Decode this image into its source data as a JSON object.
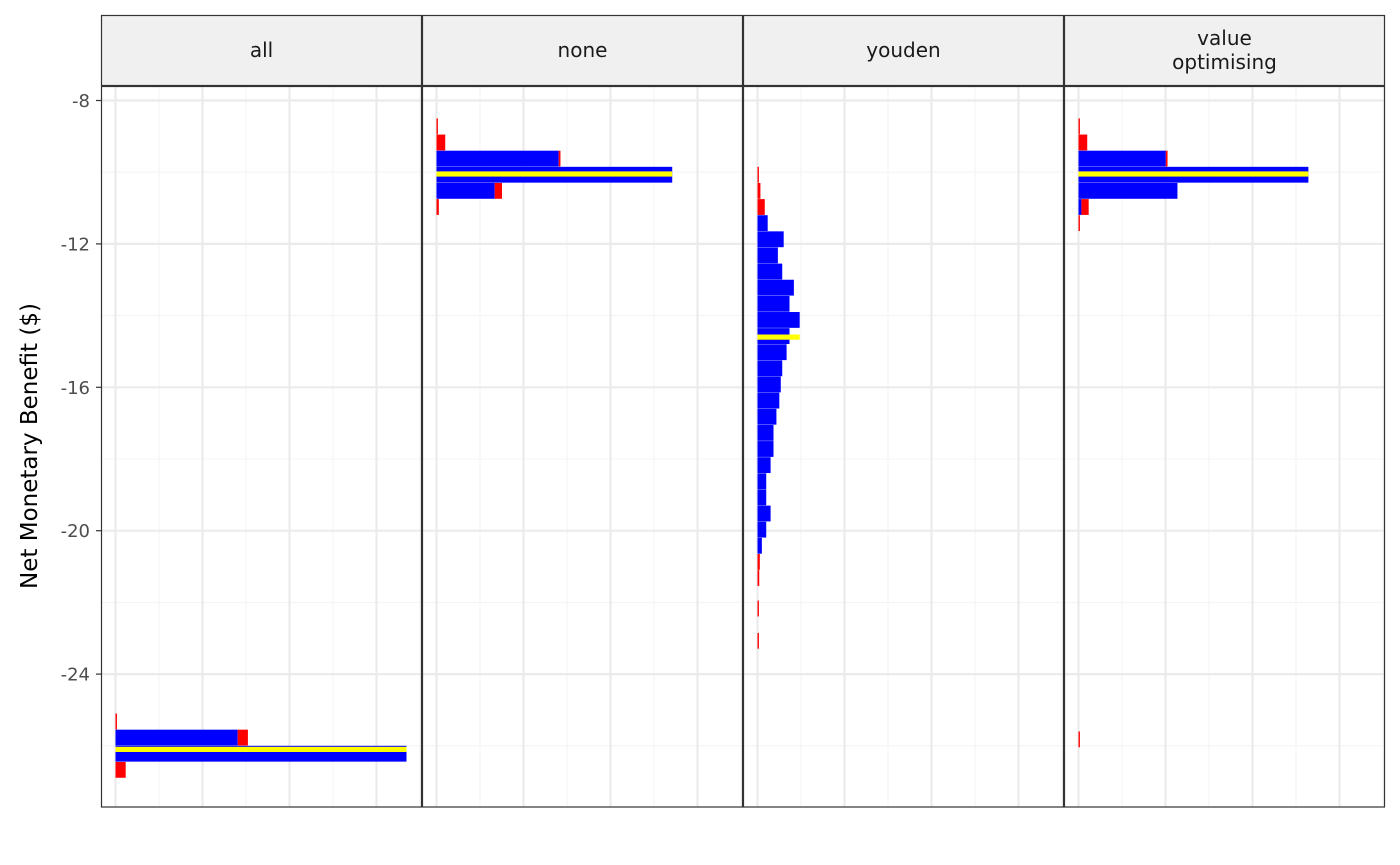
{
  "chart_data": {
    "type": "bar",
    "orientation": "horizontal",
    "ylabel": "Net Monetary Benefit ($)",
    "xlabel": "",
    "ylim": [
      -27.2,
      -7.6
    ],
    "yticks": [
      -8,
      -12,
      -16,
      -20,
      -24
    ],
    "ytick_labels": [
      "-8",
      "-12",
      "-16",
      "-20",
      "-24"
    ],
    "xlim": [
      0,
      1
    ],
    "grid": true,
    "bin_width": 0.45,
    "colors": {
      "hdi": "#0000ff",
      "tail": "#ff0000",
      "median": "#ffff00"
    },
    "panels": [
      {
        "label": "all",
        "median": -26.1,
        "bins": [
          {
            "y": -25.1,
            "length": 0.005,
            "fill": "tail"
          },
          {
            "y": -25.55,
            "length": 0.42,
            "fill": "hdi"
          },
          {
            "y": -25.55,
            "length": 0.035,
            "fill": "tail",
            "offset": 0.42
          },
          {
            "y": -26.0,
            "length": 1.0,
            "fill": "hdi"
          },
          {
            "y": -26.45,
            "length": 0.035,
            "fill": "tail"
          }
        ]
      },
      {
        "label": "none",
        "median": -10.05,
        "bins": [
          {
            "y": -8.5,
            "length": 0.004,
            "fill": "tail"
          },
          {
            "y": -8.95,
            "length": 0.03,
            "fill": "tail"
          },
          {
            "y": -9.4,
            "length": 0.42,
            "fill": "hdi"
          },
          {
            "y": -9.4,
            "length": 0.006,
            "fill": "tail",
            "offset": 0.42
          },
          {
            "y": -9.85,
            "length": 0.81,
            "fill": "hdi"
          },
          {
            "y": -10.3,
            "length": 0.2,
            "fill": "hdi"
          },
          {
            "y": -10.3,
            "length": 0.025,
            "fill": "tail",
            "offset": 0.2
          },
          {
            "y": -10.75,
            "length": 0.008,
            "fill": "tail"
          }
        ]
      },
      {
        "label": "youden",
        "median": -14.6,
        "bins": [
          {
            "y": -9.85,
            "length": 0.004,
            "fill": "tail"
          },
          {
            "y": -10.3,
            "length": 0.01,
            "fill": "tail"
          },
          {
            "y": -10.75,
            "length": 0.025,
            "fill": "tail"
          },
          {
            "y": -11.2,
            "length": 0.035,
            "fill": "hdi"
          },
          {
            "y": -11.65,
            "length": 0.09,
            "fill": "hdi"
          },
          {
            "y": -12.1,
            "length": 0.07,
            "fill": "hdi"
          },
          {
            "y": -12.55,
            "length": 0.085,
            "fill": "hdi"
          },
          {
            "y": -13.0,
            "length": 0.125,
            "fill": "hdi"
          },
          {
            "y": -13.45,
            "length": 0.11,
            "fill": "hdi"
          },
          {
            "y": -13.9,
            "length": 0.145,
            "fill": "hdi"
          },
          {
            "y": -14.35,
            "length": 0.11,
            "fill": "hdi"
          },
          {
            "y": -14.8,
            "length": 0.1,
            "fill": "hdi"
          },
          {
            "y": -15.25,
            "length": 0.085,
            "fill": "hdi"
          },
          {
            "y": -15.7,
            "length": 0.08,
            "fill": "hdi"
          },
          {
            "y": -16.15,
            "length": 0.075,
            "fill": "hdi"
          },
          {
            "y": -16.6,
            "length": 0.065,
            "fill": "hdi"
          },
          {
            "y": -17.05,
            "length": 0.055,
            "fill": "hdi"
          },
          {
            "y": -17.5,
            "length": 0.055,
            "fill": "hdi"
          },
          {
            "y": -17.95,
            "length": 0.045,
            "fill": "hdi"
          },
          {
            "y": -18.4,
            "length": 0.03,
            "fill": "hdi"
          },
          {
            "y": -18.85,
            "length": 0.03,
            "fill": "hdi"
          },
          {
            "y": -19.3,
            "length": 0.045,
            "fill": "hdi"
          },
          {
            "y": -19.75,
            "length": 0.03,
            "fill": "hdi"
          },
          {
            "y": -20.2,
            "length": 0.015,
            "fill": "hdi"
          },
          {
            "y": -20.65,
            "length": 0.008,
            "fill": "tail"
          },
          {
            "y": -21.1,
            "length": 0.006,
            "fill": "tail"
          },
          {
            "y": -21.95,
            "length": 0.004,
            "fill": "tail"
          },
          {
            "y": -22.85,
            "length": 0.003,
            "fill": "tail"
          }
        ]
      },
      {
        "label": "value\noptimising",
        "median": -10.05,
        "bins": [
          {
            "y": -8.5,
            "length": 0.004,
            "fill": "tail"
          },
          {
            "y": -8.95,
            "length": 0.03,
            "fill": "tail"
          },
          {
            "y": -9.4,
            "length": 0.3,
            "fill": "hdi"
          },
          {
            "y": -9.4,
            "length": 0.006,
            "fill": "tail",
            "offset": 0.3
          },
          {
            "y": -9.85,
            "length": 0.79,
            "fill": "hdi"
          },
          {
            "y": -10.3,
            "length": 0.34,
            "fill": "hdi"
          },
          {
            "y": -10.75,
            "length": 0.01,
            "fill": "hdi"
          },
          {
            "y": -10.75,
            "length": 0.025,
            "fill": "tail",
            "offset": 0.01
          },
          {
            "y": -11.2,
            "length": 0.004,
            "fill": "tail"
          },
          {
            "y": -25.6,
            "length": 0.003,
            "fill": "tail"
          }
        ]
      }
    ]
  }
}
